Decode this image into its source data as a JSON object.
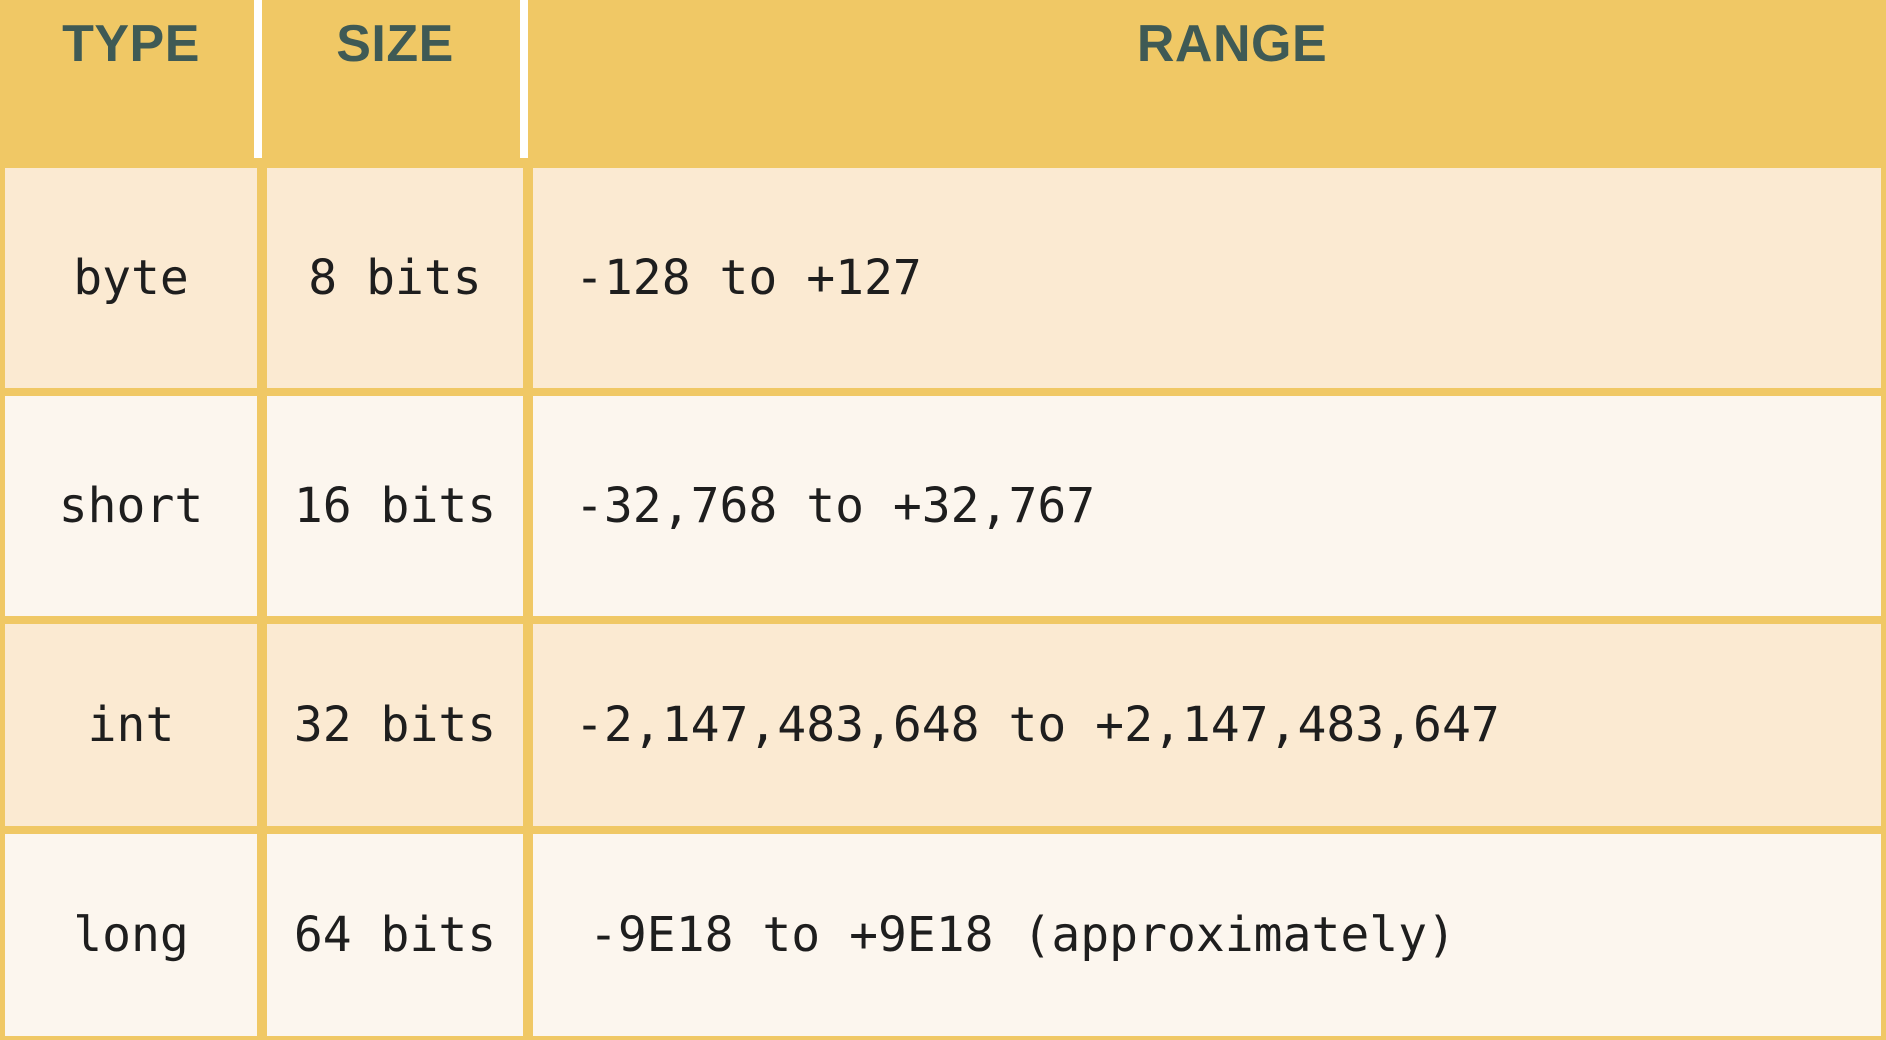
{
  "table": {
    "headers": {
      "type": "TYPE",
      "size": "SIZE",
      "range": "RANGE"
    },
    "rows": [
      {
        "type": "byte",
        "size": "8 bits",
        "range": "-128 to +127"
      },
      {
        "type": "short",
        "size": "16 bits",
        "range": "-32,768 to +32,767"
      },
      {
        "type": "int",
        "size": "32 bits",
        "range": "-2,147,483,648 to +2,147,483,647"
      },
      {
        "type": "long",
        "size": "64 bits",
        "range": "-9E18 to +9E18 (approximately)"
      }
    ]
  },
  "colors": {
    "header_bg": "#f0c865",
    "header_text": "#3f5a55",
    "row_odd_bg": "#fbead2",
    "row_even_bg": "#fcf6ee",
    "grid_line": "#f0c865",
    "header_divider": "#ffffff"
  }
}
